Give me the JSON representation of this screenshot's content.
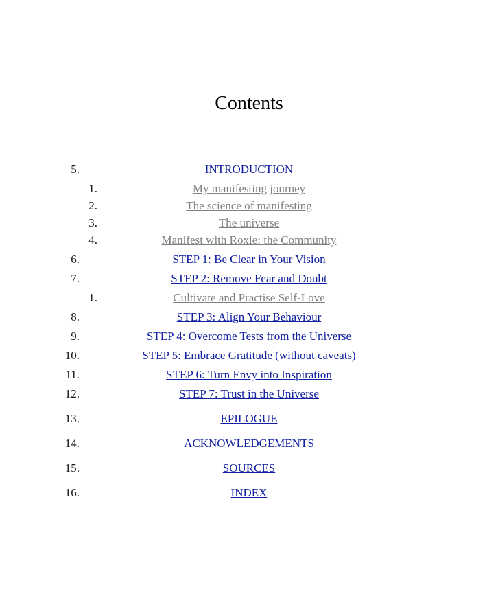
{
  "title": "Contents",
  "colors": {
    "link_blue": "#1020a0",
    "link_visited_gray": "#808080",
    "text": "#000000",
    "background": "#ffffff"
  },
  "typography": {
    "title_fontsize": 28,
    "body_fontsize": 17,
    "font_family": "Georgia"
  },
  "entries": [
    {
      "number": "5.",
      "level": "top",
      "style": "blue",
      "label": "INTRODUCTION",
      "gap": "normal"
    },
    {
      "number": "1.",
      "level": "sub",
      "style": "gray",
      "label": "My manifesting journey",
      "gap": "small"
    },
    {
      "number": "2.",
      "level": "sub",
      "style": "gray",
      "label": "The science of manifesting",
      "gap": "small"
    },
    {
      "number": "3.",
      "level": "sub",
      "style": "gray",
      "label": "The universe",
      "gap": "small"
    },
    {
      "number": "4.",
      "level": "sub",
      "style": "gray",
      "label": "Manifest with Roxie: the Community",
      "gap": "normal"
    },
    {
      "number": "6.",
      "level": "top",
      "style": "blue",
      "label": "STEP 1: Be Clear in Your Vision",
      "gap": "normal"
    },
    {
      "number": "7.",
      "level": "top",
      "style": "blue",
      "label": "STEP 2: Remove Fear and Doubt",
      "gap": "normal"
    },
    {
      "number": "1.",
      "level": "sub",
      "style": "gray",
      "label": "Cultivate and Practise Self-Love",
      "gap": "normal"
    },
    {
      "number": "8.",
      "level": "top",
      "style": "blue",
      "label": "STEP 3: Align Your Behaviour",
      "gap": "normal"
    },
    {
      "number": "9.",
      "level": "top",
      "style": "blue",
      "label": "STEP 4: Overcome Tests from the Universe",
      "gap": "normal"
    },
    {
      "number": "10.",
      "level": "top",
      "style": "blue",
      "label": "STEP 5: Embrace Gratitude (without caveats)",
      "gap": "normal"
    },
    {
      "number": "11.",
      "level": "top",
      "style": "blue",
      "label": "STEP 6: Turn Envy into Inspiration",
      "gap": "normal"
    },
    {
      "number": "12.",
      "level": "top",
      "style": "blue",
      "label": "STEP 7: Trust in the Universe",
      "gap": "big"
    },
    {
      "number": "13.",
      "level": "top",
      "style": "blue",
      "label": "EPILOGUE",
      "gap": "big"
    },
    {
      "number": "14.",
      "level": "top",
      "style": "blue",
      "label": "ACKNOWLEDGEMENTS",
      "gap": "big"
    },
    {
      "number": "15.",
      "level": "top",
      "style": "blue",
      "label": "SOURCES",
      "gap": "big"
    },
    {
      "number": "16.",
      "level": "top",
      "style": "blue",
      "label": "INDEX",
      "gap": "normal"
    }
  ]
}
